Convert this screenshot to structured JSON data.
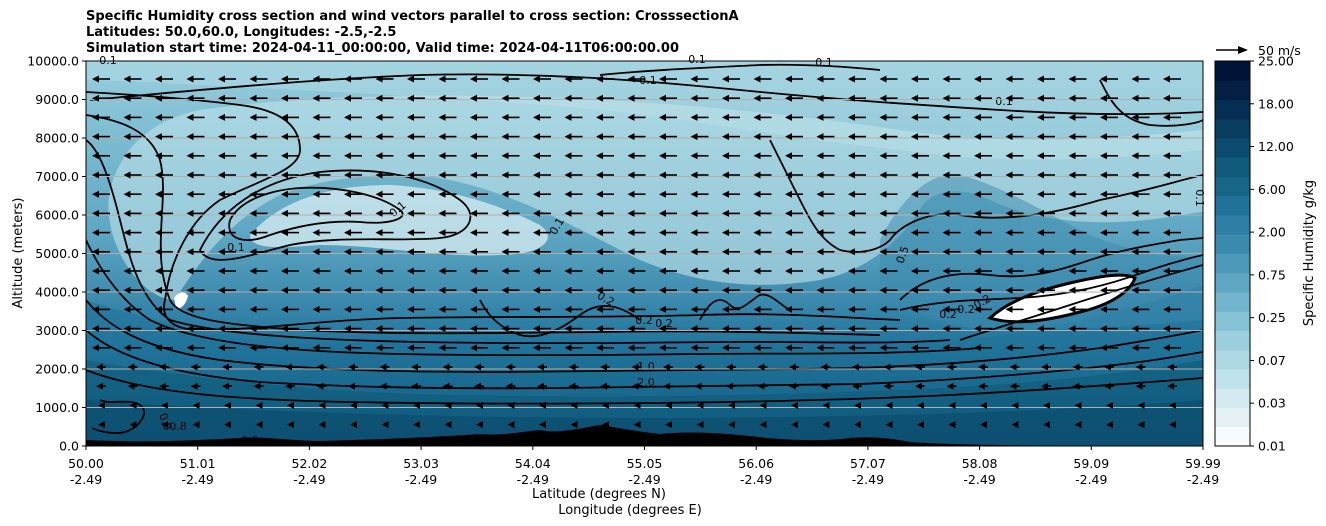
{
  "title_lines": [
    "Specific Humidity cross section and wind vectors parallel to cross section: CrosssectionA",
    "Latitudes: 50.0,60.0, Longitudes: -2.5,-2.5",
    "Simulation start time: 2024-04-11_00:00:00, Valid time: 2024-04-11T06:00:00.00"
  ],
  "chart_data": {
    "type": "heatmap",
    "title": "Specific Humidity cross section and wind vectors parallel to cross section: CrosssectionA",
    "ylabel": "Altitude (meters)",
    "xlabel_lines": [
      "Latitude (degrees N)",
      "Longitude (degrees E)"
    ],
    "ylim": [
      0,
      10000
    ],
    "y_ticks": [
      "0.0",
      "1000.0",
      "2000.0",
      "3000.0",
      "4000.0",
      "5000.0",
      "6000.0",
      "7000.0",
      "8000.0",
      "9000.0",
      "10000.0"
    ],
    "x_ticks_lat": [
      "50.00",
      "51.01",
      "52.02",
      "53.03",
      "54.04",
      "55.05",
      "56.06",
      "57.07",
      "58.08",
      "59.09",
      "59.99"
    ],
    "x_ticks_lon": [
      "-2.49",
      "-2.49",
      "-2.49",
      "-2.49",
      "-2.49",
      "-2.49",
      "-2.49",
      "-2.49",
      "-2.49",
      "-2.49",
      "-2.49"
    ],
    "grid": "horizontal",
    "colorbar": {
      "label": "Specific Humidity g/kg",
      "tick_labels": [
        "0.01",
        "0.03",
        "0.07",
        "0.25",
        "0.75",
        "2.00",
        "6.00",
        "12.00",
        "18.00",
        "25.00"
      ],
      "colors": [
        "#f7fbfd",
        "#e4f2f5",
        "#d2eaf0",
        "#c0e2ea",
        "#aed9e4",
        "#9ccfde",
        "#87c3d6",
        "#72b5cc",
        "#5ea6c2",
        "#4c98b8",
        "#3c8aae",
        "#2e7ea6",
        "#207299",
        "#176688",
        "#0f5a7a",
        "#0b4c6e",
        "#083c60",
        "#062e52",
        "#041f44",
        "#021338"
      ]
    },
    "quiver_key": "50 m/s",
    "contour_labels": [
      "0.1",
      "0.1",
      "0.1",
      "0.1",
      "0.1",
      "0.1",
      "0.1",
      "0.1",
      "0.1",
      "0.2",
      "0.2",
      "0.2",
      "0.2",
      "0.2",
      "0.2",
      "0.5",
      "0.8",
      "0.8",
      "1.0",
      "2.0",
      "0.0"
    ]
  }
}
